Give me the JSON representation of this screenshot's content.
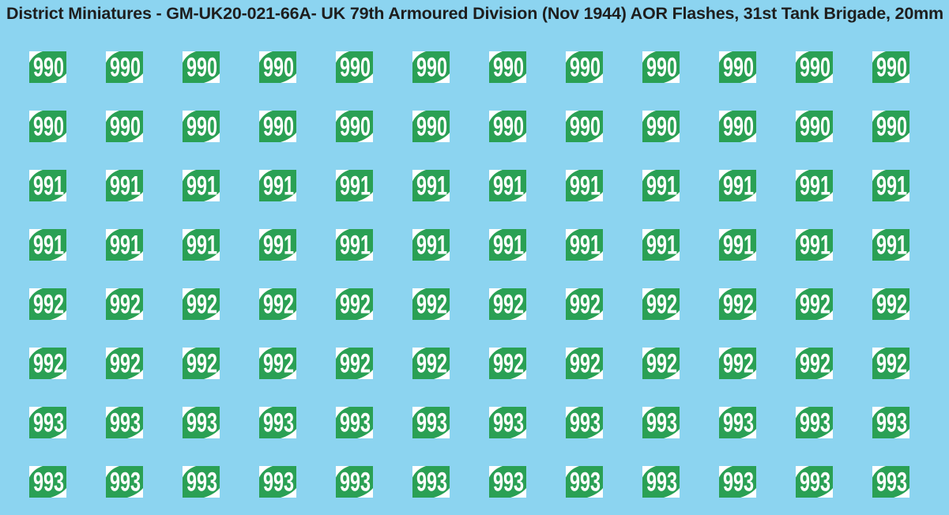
{
  "title": "District Miniatures - GM-UK20-021-66A- UK 79th Armoured Division (Nov 1944) AOR Flashes, 31st Tank Brigade, 20mm",
  "colors": {
    "background": "#8CD4F0",
    "decal_green": "#2AA054",
    "decal_text": "#FFFFFF",
    "title_text": "#1E1E1E"
  },
  "decal_sheet": {
    "columns": 12,
    "rows": [
      {
        "number": "990"
      },
      {
        "number": "990"
      },
      {
        "number": "991"
      },
      {
        "number": "991"
      },
      {
        "number": "992"
      },
      {
        "number": "992"
      },
      {
        "number": "993"
      },
      {
        "number": "993"
      }
    ]
  }
}
